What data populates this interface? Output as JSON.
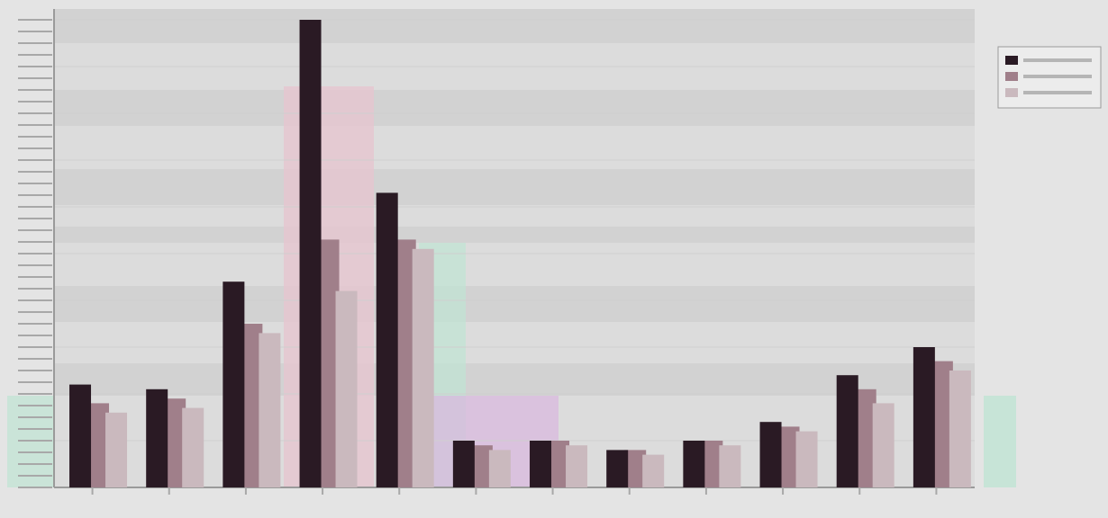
{
  "chart_data": {
    "type": "bar",
    "title": "",
    "xlabel": "",
    "ylabel": "",
    "ylim": [
      0,
      100
    ],
    "grid": true,
    "legend_position": "top-right",
    "categories": [
      "",
      "",
      "",
      "",
      "",
      "",
      "",
      "",
      "",
      "",
      "",
      ""
    ],
    "series": [
      {
        "values": [
          22,
          21,
          44,
          100,
          63,
          10,
          10,
          8,
          10,
          14,
          24,
          30
        ],
        "color": "#2a1a24"
      },
      {
        "values": [
          18,
          19,
          35,
          53,
          53,
          9,
          10,
          8,
          10,
          13,
          21,
          27
        ],
        "color": "#a07f8a"
      },
      {
        "values": [
          16,
          17,
          33,
          42,
          51,
          8,
          9,
          7,
          9,
          12,
          18,
          25
        ],
        "color": "#cab9be"
      }
    ],
    "colors": {
      "background": "#e4e4e4",
      "plot_background": "#dcdcdc",
      "band": "#d2d2d2",
      "accent_pink": "#e7c4cf",
      "accent_mint": "#bfe4d3",
      "accent_lavender": "#d9b6de"
    }
  }
}
